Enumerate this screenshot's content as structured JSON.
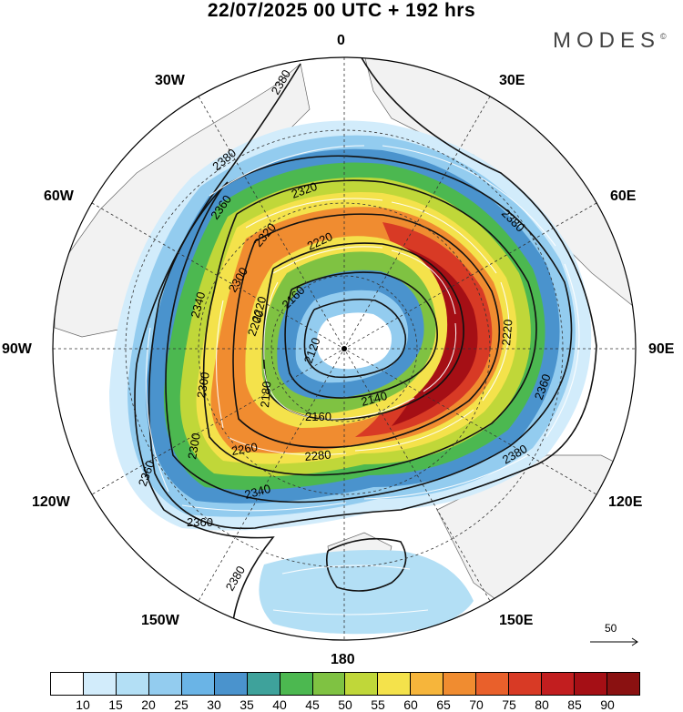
{
  "title": "22/07/2025  00 UTC  + 192 hrs",
  "logo": "MODES",
  "logo_mark": "©",
  "longitude_labels": {
    "top": "0",
    "upper_left": "30W",
    "upper_right": "30E",
    "mid_upper_left": "60W",
    "mid_upper_right": "60E",
    "left": "90W",
    "right": "90E",
    "mid_lower_left": "120W",
    "mid_lower_right": "120E",
    "lower_left": "150W",
    "lower_right": "150E",
    "bottom": "180"
  },
  "contour_labels": [
    "2380",
    "2380",
    "2360",
    "2320",
    "2220",
    "2300",
    "2340",
    "2200",
    "2160",
    "2120",
    "2180",
    "2300",
    "2260",
    "2280",
    "2140",
    "2160",
    "2220",
    "2300",
    "2340",
    "2360",
    "2360",
    "2380",
    "2380",
    "2380",
    "2360",
    "2320",
    "2220"
  ],
  "wind_reference": {
    "value": "50"
  },
  "colorbar": {
    "colors": [
      "#ffffff",
      "#d2ecfb",
      "#b3dff5",
      "#93ccef",
      "#6ab4e6",
      "#4a93cd",
      "#3ea29b",
      "#4cb850",
      "#7fc242",
      "#c0d739",
      "#f4e24b",
      "#f6b53b",
      "#f08c30",
      "#e9602b",
      "#d83a25",
      "#c21e1f",
      "#a50f15",
      "#8a1111"
    ],
    "labels": [
      "10",
      "15",
      "20",
      "25",
      "30",
      "35",
      "40",
      "45",
      "50",
      "55",
      "60",
      "65",
      "70",
      "75",
      "80",
      "85",
      "90"
    ]
  }
}
